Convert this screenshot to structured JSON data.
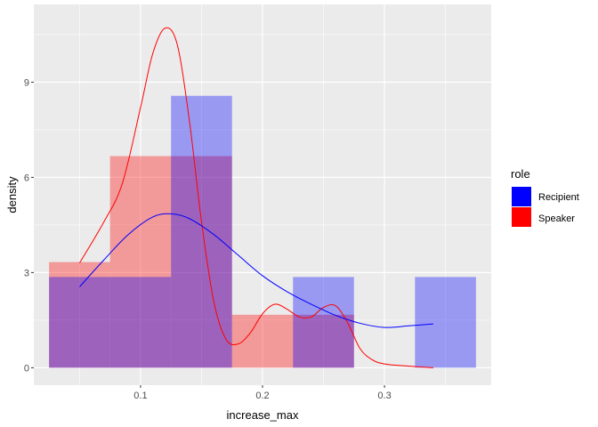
{
  "chart_data": {
    "type": "histogram",
    "xlabel": "increase_max",
    "ylabel": "density",
    "xlim": [
      0.0125,
      0.3875
    ],
    "ylim": [
      -0.55,
      11.45
    ],
    "x_ticks": [
      0.1,
      0.2,
      0.3
    ],
    "x_tick_labels": [
      "0.1",
      "0.2",
      "0.3"
    ],
    "y_ticks": [
      0,
      3,
      6,
      9
    ],
    "y_tick_labels": [
      "0",
      "3",
      "6",
      "9"
    ],
    "grid": true,
    "panel_background": "#ebebeb",
    "legend": {
      "title": "role",
      "placement": "right",
      "entries": [
        "Recipient",
        "Speaker"
      ]
    },
    "bin_width": 0.05,
    "series": [
      {
        "name": "Speaker",
        "color": "#ff0000",
        "fill_alpha": 0.35,
        "bars": [
          {
            "x0": 0.025,
            "x1": 0.075,
            "density": 3.33
          },
          {
            "x0": 0.075,
            "x1": 0.125,
            "density": 6.67
          },
          {
            "x0": 0.125,
            "x1": 0.175,
            "density": 6.67
          },
          {
            "x0": 0.175,
            "x1": 0.225,
            "density": 1.67
          },
          {
            "x0": 0.225,
            "x1": 0.275,
            "density": 1.67
          }
        ],
        "density_curve": [
          [
            0.05,
            3.3
          ],
          [
            0.07,
            4.6
          ],
          [
            0.085,
            5.8
          ],
          [
            0.1,
            8.2
          ],
          [
            0.11,
            9.9
          ],
          [
            0.12,
            10.7
          ],
          [
            0.13,
            10.2
          ],
          [
            0.14,
            7.8
          ],
          [
            0.15,
            4.6
          ],
          [
            0.16,
            2.1
          ],
          [
            0.17,
            0.9
          ],
          [
            0.18,
            0.75
          ],
          [
            0.19,
            1.1
          ],
          [
            0.2,
            1.7
          ],
          [
            0.21,
            2.0
          ],
          [
            0.22,
            1.85
          ],
          [
            0.23,
            1.6
          ],
          [
            0.24,
            1.6
          ],
          [
            0.25,
            1.9
          ],
          [
            0.26,
            1.95
          ],
          [
            0.27,
            1.4
          ],
          [
            0.28,
            0.6
          ],
          [
            0.29,
            0.25
          ],
          [
            0.3,
            0.12
          ],
          [
            0.32,
            0.05
          ],
          [
            0.34,
            0.0
          ]
        ]
      },
      {
        "name": "Recipient",
        "color": "#0000ff",
        "fill_alpha": 0.35,
        "bars": [
          {
            "x0": 0.025,
            "x1": 0.075,
            "density": 2.86
          },
          {
            "x0": 0.075,
            "x1": 0.125,
            "density": 2.86
          },
          {
            "x0": 0.125,
            "x1": 0.175,
            "density": 8.57
          },
          {
            "x0": 0.175,
            "x1": 0.225,
            "density": 0
          },
          {
            "x0": 0.225,
            "x1": 0.275,
            "density": 2.86
          },
          {
            "x0": 0.275,
            "x1": 0.325,
            "density": 0
          },
          {
            "x0": 0.325,
            "x1": 0.375,
            "density": 2.86
          }
        ],
        "density_curve": [
          [
            0.05,
            2.55
          ],
          [
            0.07,
            3.4
          ],
          [
            0.09,
            4.2
          ],
          [
            0.11,
            4.75
          ],
          [
            0.125,
            4.85
          ],
          [
            0.14,
            4.7
          ],
          [
            0.16,
            4.2
          ],
          [
            0.18,
            3.55
          ],
          [
            0.2,
            2.9
          ],
          [
            0.22,
            2.4
          ],
          [
            0.24,
            2.0
          ],
          [
            0.26,
            1.65
          ],
          [
            0.28,
            1.4
          ],
          [
            0.3,
            1.27
          ],
          [
            0.32,
            1.32
          ],
          [
            0.34,
            1.38
          ]
        ]
      }
    ]
  }
}
